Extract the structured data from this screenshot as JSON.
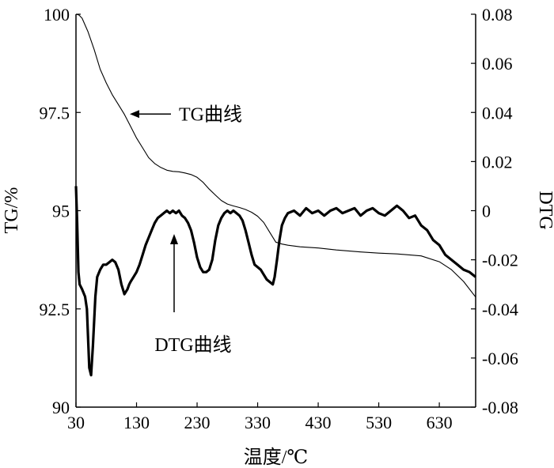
{
  "chart_data": {
    "type": "line",
    "xlabel": "温度/℃",
    "ylabel_left": "TG/%",
    "ylabel_right": "DTG",
    "xlim": [
      30,
      690
    ],
    "ylim_left": [
      90,
      100
    ],
    "ylim_right": [
      -0.08,
      0.08
    ],
    "x_ticks": [
      30,
      130,
      230,
      330,
      430,
      530,
      630
    ],
    "y_ticks_left": [
      "90",
      "92.5",
      "95",
      "97.5",
      "100"
    ],
    "y_ticks_right": [
      "-0.08",
      "-0.06",
      "-0.04",
      "-0.02",
      "0",
      "0.02",
      "0.04",
      "0.06",
      "0.08"
    ],
    "grid": false,
    "series": [
      {
        "name": "TG曲线",
        "axis": "left",
        "color": "#000000",
        "x": [
          30,
          35,
          40,
          50,
          60,
          70,
          80,
          90,
          100,
          110,
          120,
          130,
          140,
          150,
          160,
          170,
          180,
          190,
          200,
          210,
          220,
          230,
          240,
          250,
          260,
          270,
          280,
          290,
          300,
          310,
          320,
          330,
          340,
          350,
          360,
          370,
          380,
          400,
          430,
          460,
          500,
          530,
          560,
          600,
          630,
          650,
          670,
          690
        ],
        "y": [
          100,
          99.98,
          99.9,
          99.55,
          99.1,
          98.6,
          98.25,
          97.95,
          97.7,
          97.45,
          97.15,
          96.85,
          96.6,
          96.35,
          96.2,
          96.1,
          96.03,
          96.0,
          95.99,
          95.96,
          95.92,
          95.85,
          95.72,
          95.55,
          95.4,
          95.26,
          95.17,
          95.12,
          95.08,
          95.03,
          94.96,
          94.86,
          94.7,
          94.45,
          94.2,
          94.15,
          94.12,
          94.08,
          94.05,
          94.0,
          93.95,
          93.92,
          93.9,
          93.85,
          93.7,
          93.5,
          93.2,
          92.8
        ]
      },
      {
        "name": "DTG曲线",
        "axis": "right",
        "color": "#000000",
        "x": [
          30,
          32,
          34,
          36,
          40,
          45,
          48,
          50,
          52,
          55,
          58,
          62,
          65,
          70,
          75,
          80,
          85,
          90,
          95,
          100,
          105,
          110,
          115,
          118,
          120,
          125,
          130,
          135,
          140,
          145,
          150,
          155,
          160,
          165,
          170,
          175,
          180,
          185,
          190,
          195,
          200,
          205,
          210,
          215,
          220,
          225,
          230,
          235,
          240,
          245,
          250,
          255,
          260,
          265,
          270,
          275,
          280,
          285,
          290,
          295,
          300,
          305,
          310,
          315,
          320,
          325,
          330,
          335,
          340,
          345,
          350,
          355,
          358,
          362,
          366,
          370,
          375,
          380,
          390,
          400,
          410,
          420,
          430,
          440,
          450,
          460,
          470,
          480,
          490,
          500,
          510,
          520,
          530,
          540,
          550,
          560,
          570,
          580,
          590,
          600,
          610,
          620,
          630,
          640,
          650,
          660,
          670,
          680,
          690
        ],
        "y": [
          0.01,
          -0.005,
          -0.025,
          -0.03,
          -0.032,
          -0.035,
          -0.04,
          -0.052,
          -0.064,
          -0.067,
          -0.055,
          -0.035,
          -0.027,
          -0.024,
          -0.022,
          -0.022,
          -0.021,
          -0.02,
          -0.021,
          -0.024,
          -0.03,
          -0.034,
          -0.032,
          -0.03,
          -0.029,
          -0.027,
          -0.025,
          -0.022,
          -0.018,
          -0.014,
          -0.011,
          -0.008,
          -0.005,
          -0.003,
          -0.002,
          -0.001,
          0.0,
          -0.001,
          0.0,
          -0.001,
          0.0,
          -0.002,
          -0.003,
          -0.005,
          -0.008,
          -0.013,
          -0.019,
          -0.023,
          -0.025,
          -0.025,
          -0.024,
          -0.02,
          -0.012,
          -0.006,
          -0.003,
          -0.001,
          0.0,
          -0.001,
          0.0,
          -0.001,
          -0.002,
          -0.004,
          -0.008,
          -0.013,
          -0.018,
          -0.022,
          -0.023,
          -0.024,
          -0.026,
          -0.028,
          -0.029,
          -0.03,
          -0.027,
          -0.02,
          -0.012,
          -0.006,
          -0.003,
          -0.001,
          0.0,
          -0.002,
          0.001,
          -0.001,
          0.0,
          -0.002,
          0.0,
          0.001,
          -0.001,
          0.0,
          0.001,
          -0.002,
          0.0,
          0.001,
          -0.001,
          -0.002,
          0.0,
          0.002,
          0.0,
          -0.003,
          -0.002,
          -0.006,
          -0.008,
          -0.012,
          -0.014,
          -0.018,
          -0.02,
          -0.022,
          -0.024,
          -0.025,
          -0.027
        ]
      }
    ],
    "annotations": [
      {
        "text": "TG曲线"
      },
      {
        "text": "DTG曲线"
      }
    ]
  }
}
